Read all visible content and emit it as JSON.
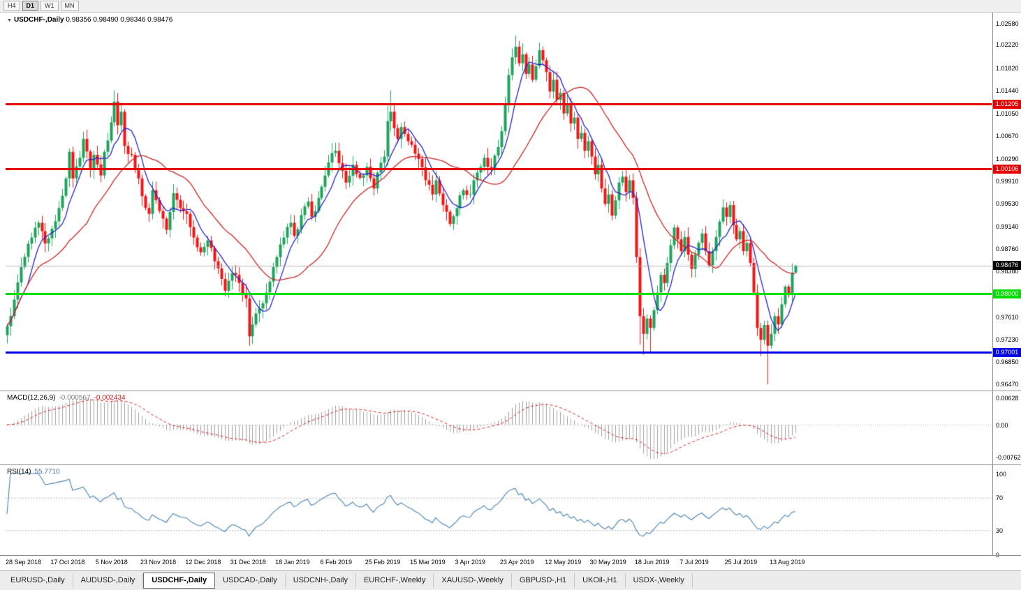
{
  "toolbar": {
    "timeframes": [
      {
        "label": "H4",
        "active": false
      },
      {
        "label": "D1",
        "active": true
      },
      {
        "label": "W1",
        "active": false
      },
      {
        "label": "MN",
        "active": false
      }
    ]
  },
  "chart_header": {
    "dropdown_icon": "▼",
    "symbol": "USDCHF-,Daily",
    "ohlc": "0.98356 0.98490 0.98346 0.98476"
  },
  "macd_panel": {
    "title": "MACD(12,26,9)",
    "value_main": "-0.000567",
    "value_signal": "-0.002434"
  },
  "rsi_panel": {
    "title": "RSI(14)",
    "value": "55.7710"
  },
  "tabs": {
    "active": "USDCHF-,Daily",
    "items": [
      "EURUSD-,Daily",
      "AUDUSD-,Daily",
      "USDCHF-,Daily",
      "USDCAD-,Daily",
      "USDCNH-,Daily",
      "EURCHF-,Weekly",
      "XAUUSD-,Weekly",
      "GBPUSD-,H1",
      "UKOil-,H1",
      "USDX-,Weekly"
    ]
  },
  "chart_data": {
    "type": "candlestick",
    "symbol": "USDCHF-,Daily",
    "last_ohlc": {
      "open": 0.98356,
      "high": 0.9849,
      "low": 0.98346,
      "close": 0.98476
    },
    "n_candles": 229,
    "label_every": 13,
    "x_labels": [
      "28 Sep 2018",
      "17 Oct 2018",
      "5 Nov 2018",
      "23 Nov 2018",
      "12 Dec 2018",
      "31 Dec 2018",
      "18 Jan 2019",
      "6 Feb 2019",
      "25 Feb 2019",
      "15 Mar 2019",
      "3 Apr 2019",
      "23 Apr 2019",
      "12 May 2019",
      "30 May 2019",
      "18 Jun 2019",
      "7 Jul 2019",
      "25 Jul 2019",
      "13 Aug 2019"
    ],
    "y_axis": {
      "ticks": [
        "1.02580",
        "1.02220",
        "1.01820",
        "1.01440",
        "1.01050",
        "1.00670",
        "1.00290",
        "0.99910",
        "0.99530",
        "0.99140",
        "0.98760",
        "0.98380",
        "0.97990",
        "0.97610",
        "0.97230",
        "0.96850",
        "0.96470"
      ]
    },
    "h_lines": [
      {
        "price": 1.01205,
        "label": "1.01205",
        "color": "#e60000",
        "thickness": 3
      },
      {
        "price": 1.00106,
        "label": "1.00106",
        "color": "#e60000",
        "thickness": 3
      },
      {
        "price": 0.98,
        "label": "0.98000",
        "color": "#00dd00",
        "thickness": 3
      },
      {
        "price": 0.97001,
        "label": "0.97001",
        "color": "#0000e6",
        "thickness": 3
      }
    ],
    "current_price": {
      "value": 0.98476,
      "label": "0.98476"
    },
    "colors": {
      "up": "#1fa35c",
      "down": "#f21515",
      "ma_fast": "#2323cc",
      "ma_slow": "#cc2323",
      "macd_hist": "#a0a0a0",
      "macd_signal": "#e02020",
      "rsi": "#4682b4",
      "level_dotted": "#b8b8b8"
    },
    "ma_fast_period": 7,
    "ma_slow_period": 24,
    "close_anchors": [
      [
        0,
        0.9745
      ],
      [
        2,
        0.979
      ],
      [
        4,
        0.9845
      ],
      [
        7,
        0.9895
      ],
      [
        9,
        0.992
      ],
      [
        11,
        0.9885
      ],
      [
        13,
        0.991
      ],
      [
        15,
        0.9945
      ],
      [
        17,
        0.9995
      ],
      [
        18,
        1.004
      ],
      [
        19,
        0.9995
      ],
      [
        21,
        1.003
      ],
      [
        22,
        1.0062
      ],
      [
        24,
        1.001
      ],
      [
        25,
        1.0035
      ],
      [
        27,
        1.0
      ],
      [
        28,
        1.004
      ],
      [
        30,
        1.009
      ],
      [
        31,
        1.0125
      ],
      [
        32,
        1.0085
      ],
      [
        33,
        1.0108
      ],
      [
        34,
        1.005
      ],
      [
        36,
        1.0035
      ],
      [
        38,
        0.9995
      ],
      [
        39,
        0.9965
      ],
      [
        41,
        0.9935
      ],
      [
        42,
        0.9975
      ],
      [
        44,
        0.994
      ],
      [
        46,
        0.9908
      ],
      [
        48,
        0.997
      ],
      [
        50,
        0.9945
      ],
      [
        52,
        0.9935
      ],
      [
        54,
        0.9895
      ],
      [
        56,
        0.987
      ],
      [
        58,
        0.989
      ],
      [
        60,
        0.9855
      ],
      [
        62,
        0.9825
      ],
      [
        63,
        0.9805
      ],
      [
        65,
        0.9835
      ],
      [
        67,
        0.9818
      ],
      [
        69,
        0.9792
      ],
      [
        70,
        0.9728
      ],
      [
        71,
        0.9748
      ],
      [
        73,
        0.9775
      ],
      [
        75,
        0.9802
      ],
      [
        77,
        0.9845
      ],
      [
        78,
        0.9862
      ],
      [
        80,
        0.9895
      ],
      [
        82,
        0.992
      ],
      [
        83,
        0.9898
      ],
      [
        85,
        0.9933
      ],
      [
        87,
        0.9956
      ],
      [
        88,
        0.993
      ],
      [
        90,
        0.9962
      ],
      [
        92,
        1.0
      ],
      [
        93,
        1.0022
      ],
      [
        95,
        1.0042
      ],
      [
        97,
        1.0008
      ],
      [
        98,
        0.9988
      ],
      [
        100,
        1.0018
      ],
      [
        102,
        0.9996
      ],
      [
        104,
        1.0015
      ],
      [
        106,
        0.9978
      ],
      [
        107,
        1.0005
      ],
      [
        109,
        1.0032
      ],
      [
        110,
        1.0092
      ],
      [
        111,
        1.0108
      ],
      [
        113,
        1.0062
      ],
      [
        114,
        1.0082
      ],
      [
        116,
        1.0058
      ],
      [
        117,
        1.0052
      ],
      [
        119,
        1.0028
      ],
      [
        121,
        0.9992
      ],
      [
        123,
        0.9968
      ],
      [
        124,
        0.9992
      ],
      [
        126,
        0.995
      ],
      [
        128,
        0.9918
      ],
      [
        130,
        0.9945
      ],
      [
        132,
        0.9975
      ],
      [
        134,
        0.9968
      ],
      [
        136,
        1.0005
      ],
      [
        138,
        1.003
      ],
      [
        140,
        1.0012
      ],
      [
        142,
        1.0048
      ],
      [
        143,
        1.0075
      ],
      [
        144,
        1.012
      ],
      [
        145,
        1.017
      ],
      [
        146,
        1.02
      ],
      [
        147,
        1.0218
      ],
      [
        148,
        1.019
      ],
      [
        149,
        1.0205
      ],
      [
        150,
        1.0172
      ],
      [
        151,
        1.0188
      ],
      [
        152,
        1.0162
      ],
      [
        153,
        1.0185
      ],
      [
        154,
        1.0212
      ],
      [
        155,
        1.0195
      ],
      [
        156,
        1.0175
      ],
      [
        157,
        1.0142
      ],
      [
        158,
        1.0162
      ],
      [
        159,
        1.0128
      ],
      [
        160,
        1.014
      ],
      [
        161,
        1.0105
      ],
      [
        162,
        1.0122
      ],
      [
        163,
        1.0088
      ],
      [
        164,
        1.0098
      ],
      [
        165,
        1.0062
      ],
      [
        166,
        1.0072
      ],
      [
        167,
        1.0042
      ],
      [
        168,
        1.0058
      ],
      [
        169,
        1.0032
      ],
      [
        170,
        1.0002
      ],
      [
        171,
        1.0018
      ],
      [
        172,
        0.9978
      ],
      [
        173,
        0.9952
      ],
      [
        174,
        0.9968
      ],
      [
        175,
        0.9932
      ],
      [
        176,
        0.9958
      ],
      [
        177,
        0.9988
      ],
      [
        178,
        0.9998
      ],
      [
        179,
        0.9972
      ],
      [
        180,
        0.9992
      ],
      [
        181,
        0.9962
      ],
      [
        182,
        0.9862
      ],
      [
        183,
        0.9762
      ],
      [
        184,
        0.9732
      ],
      [
        185,
        0.9758
      ],
      [
        186,
        0.9742
      ],
      [
        187,
        0.9772
      ],
      [
        188,
        0.9802
      ],
      [
        189,
        0.9832
      ],
      [
        190,
        0.9818
      ],
      [
        191,
        0.9852
      ],
      [
        192,
        0.9882
      ],
      [
        193,
        0.9912
      ],
      [
        194,
        0.9892
      ],
      [
        195,
        0.9872
      ],
      [
        196,
        0.9896
      ],
      [
        197,
        0.9866
      ],
      [
        198,
        0.9842
      ],
      [
        199,
        0.9866
      ],
      [
        200,
        0.9886
      ],
      [
        201,
        0.9902
      ],
      [
        202,
        0.9872
      ],
      [
        203,
        0.9848
      ],
      [
        204,
        0.9872
      ],
      [
        205,
        0.9896
      ],
      [
        206,
        0.9922
      ],
      [
        207,
        0.9946
      ],
      [
        208,
        0.993
      ],
      [
        209,
        0.995
      ],
      [
        210,
        0.9916
      ],
      [
        211,
        0.9892
      ],
      [
        212,
        0.9906
      ],
      [
        213,
        0.9872
      ],
      [
        214,
        0.9886
      ],
      [
        215,
        0.9852
      ],
      [
        216,
        0.9802
      ],
      [
        217,
        0.9742
      ],
      [
        218,
        0.9722
      ],
      [
        219,
        0.9747
      ],
      [
        220,
        0.9712
      ],
      [
        221,
        0.9732
      ],
      [
        222,
        0.9762
      ],
      [
        223,
        0.9748
      ],
      [
        224,
        0.9782
      ],
      [
        225,
        0.9812
      ],
      [
        226,
        0.9798
      ],
      [
        227,
        0.98356
      ],
      [
        228,
        0.98476
      ]
    ],
    "wick_overrides": {
      "31": {
        "high": 1.0144
      },
      "70": {
        "low": 0.9712
      },
      "110": {
        "high": 1.0118
      },
      "111": {
        "high": 1.0144
      },
      "147": {
        "high": 1.0237
      },
      "149": {
        "high": 1.0224
      },
      "154": {
        "high": 1.0225
      },
      "183": {
        "low": 0.9714
      },
      "184": {
        "low": 0.9697
      },
      "186": {
        "low": 0.97
      },
      "218": {
        "low": 0.9695
      },
      "220": {
        "low": 0.9647
      },
      "228": {
        "high": 0.9849,
        "low": 0.98346
      }
    },
    "macd": {
      "params": [
        12,
        26,
        9
      ],
      "last_main": -0.000567,
      "last_signal": -0.002434,
      "ticks": [
        "0.00628",
        "0.00",
        "-0.00762"
      ]
    },
    "rsi": {
      "period": 14,
      "last": 55.771,
      "ticks": [
        "100",
        "70",
        "30",
        "0"
      ],
      "levels": [
        70,
        30
      ]
    }
  }
}
